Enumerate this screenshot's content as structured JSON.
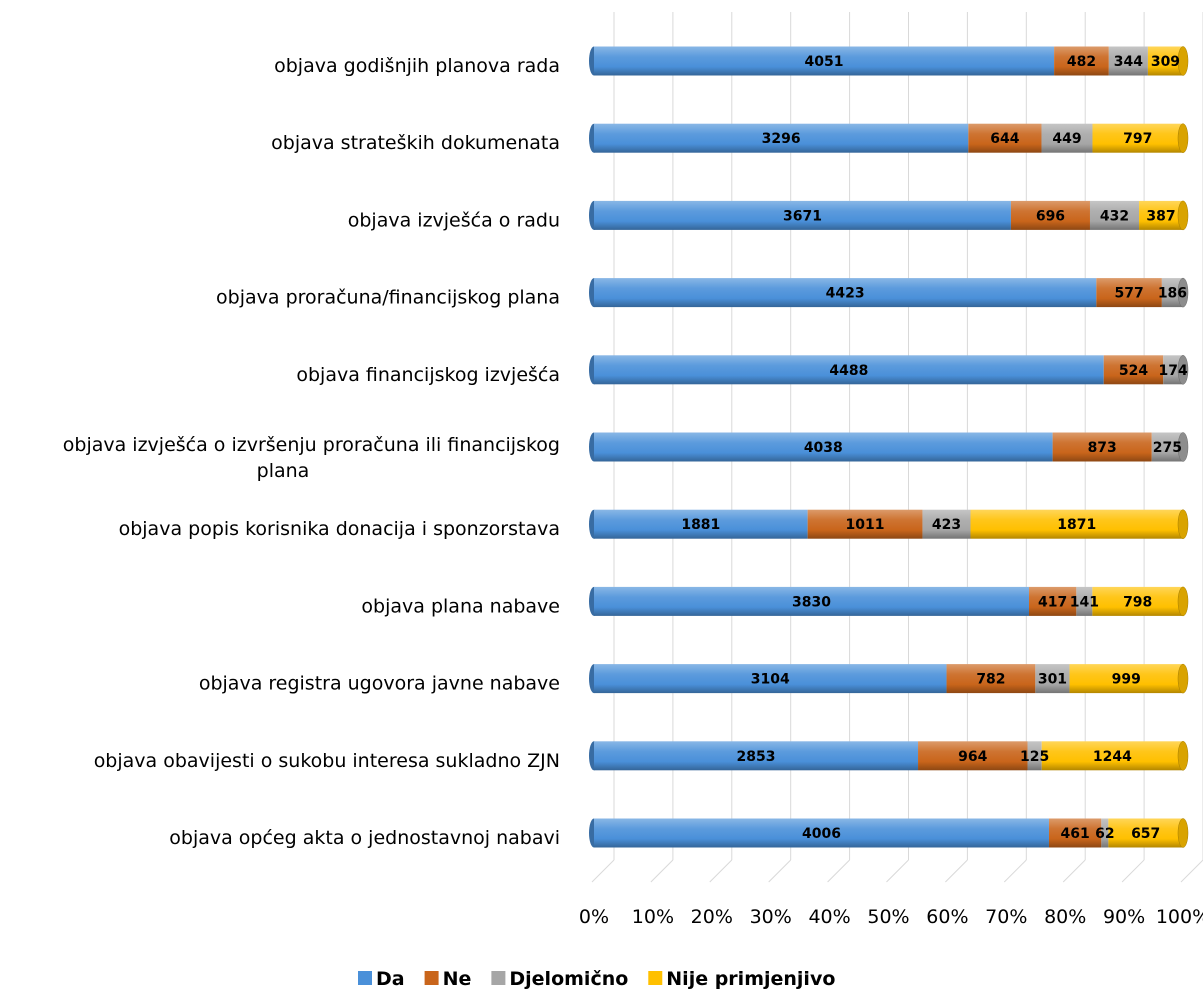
{
  "chart_data": {
    "type": "bar",
    "orientation": "horizontal",
    "stacked": "percent",
    "categories": [
      "objava godišnjih planova rada",
      "objava strateških dokumenata",
      "objava izvješća o radu",
      "objava proračuna/financijskog plana",
      "objava financijskog izvješća",
      "objava izvješća o izvršenju proračuna ili financijskog plana",
      "objava popis korisnika donacija i sponzorstava",
      "objava plana nabave",
      "objava registra ugovora javne nabave",
      "objava obavijesti o sukobu interesa sukladno ZJN",
      "objava općeg akta o jednostavnoj nabavi"
    ],
    "series": [
      {
        "name": "Da",
        "color": "#4a90d9",
        "values": [
          4051,
          3296,
          3671,
          4423,
          4488,
          4038,
          1881,
          3830,
          3104,
          2853,
          4006
        ]
      },
      {
        "name": "Ne",
        "color": "#c9651b",
        "values": [
          482,
          644,
          696,
          577,
          524,
          873,
          1011,
          417,
          782,
          964,
          461
        ]
      },
      {
        "name": "Djelomično",
        "color": "#a6a6a6",
        "values": [
          344,
          449,
          432,
          186,
          174,
          275,
          423,
          141,
          301,
          125,
          62
        ]
      },
      {
        "name": "Nije primjenjivo",
        "color": "#ffc000",
        "values": [
          309,
          797,
          387,
          0,
          0,
          0,
          1871,
          798,
          999,
          1244,
          657
        ]
      }
    ],
    "xticks": [
      "0%",
      "10%",
      "20%",
      "30%",
      "40%",
      "50%",
      "60%",
      "70%",
      "80%",
      "90%",
      "100%"
    ],
    "xlim": [
      0,
      100
    ],
    "grid": true,
    "legend_position": "bottom"
  }
}
